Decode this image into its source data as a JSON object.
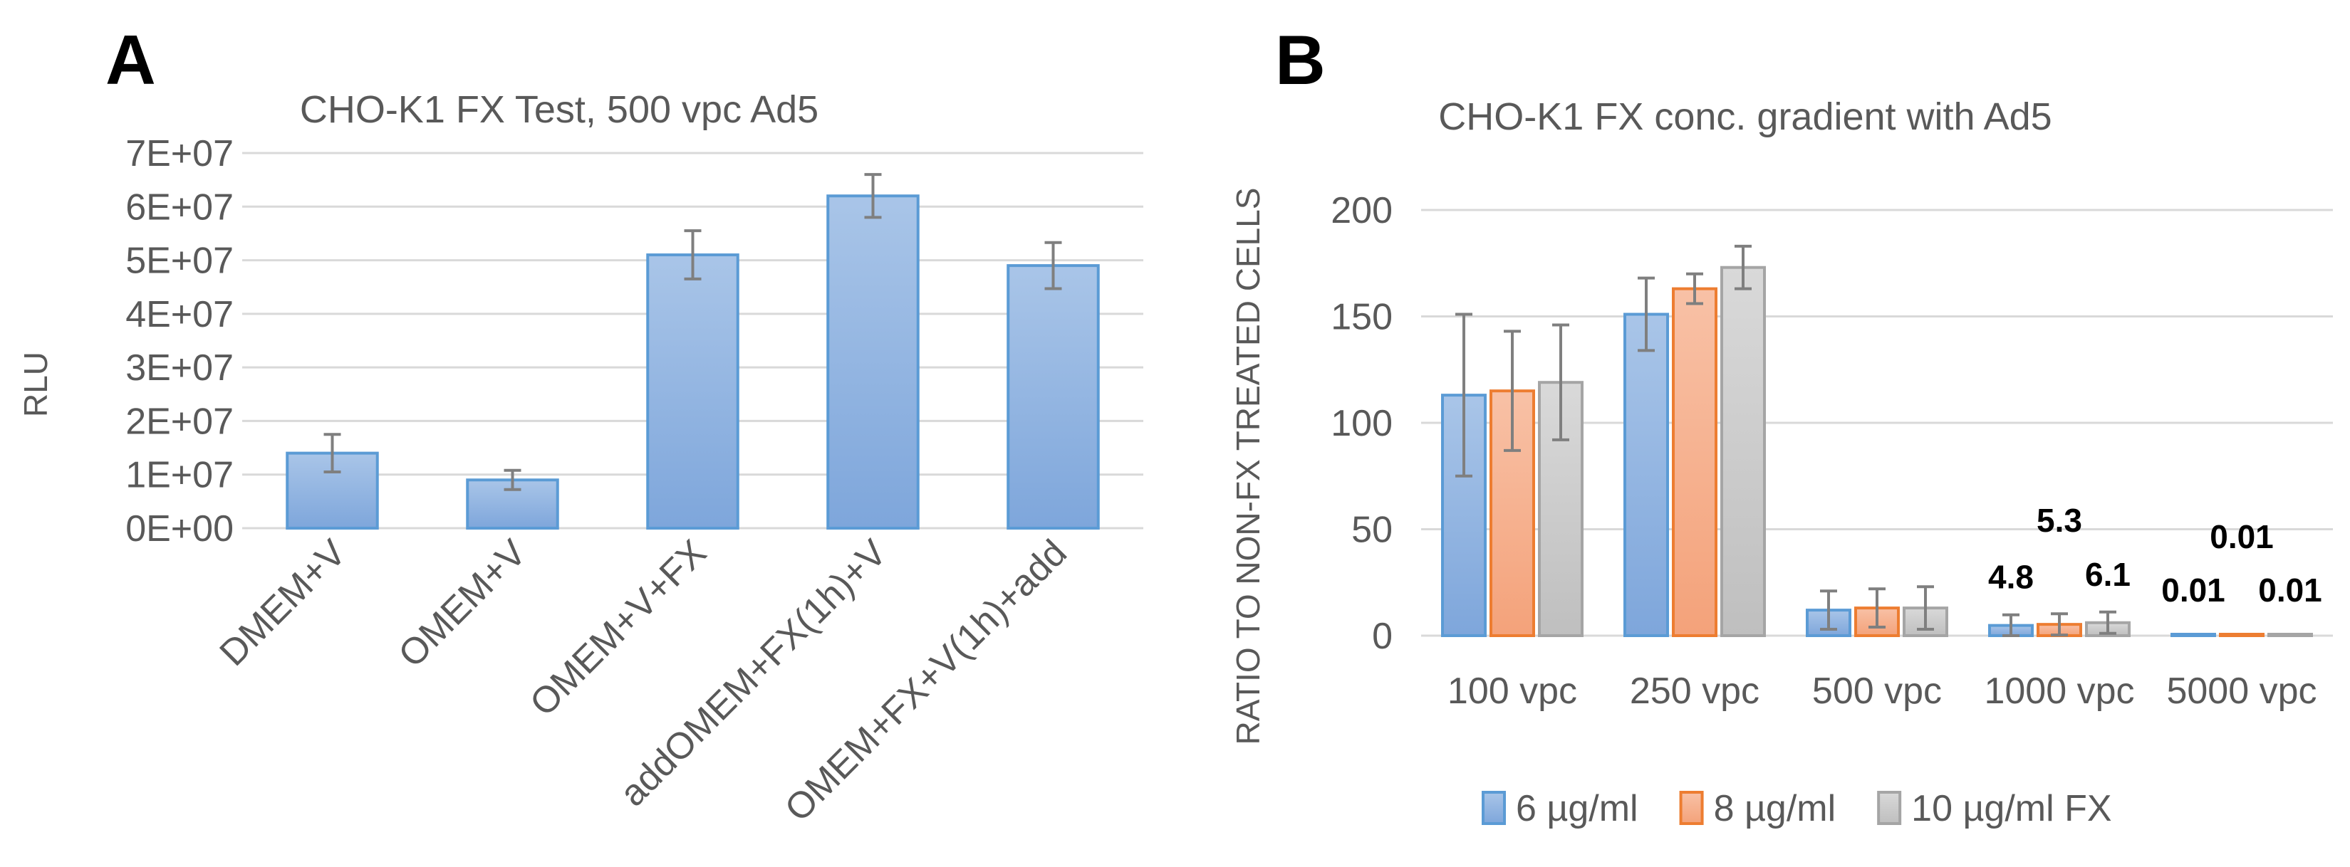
{
  "panels": {
    "a_letter": "A",
    "b_letter": "B"
  },
  "chart_data": [
    {
      "type": "bar",
      "title": "CHO-K1 FX Test, 500 vpc Ad5",
      "ylabel": "RLU",
      "xlabel": "",
      "ylim": [
        0,
        70000000
      ],
      "yticks": [
        0,
        10000000,
        20000000,
        30000000,
        40000000,
        50000000,
        60000000,
        70000000
      ],
      "ytick_labels": [
        "0E+00",
        "1E+07",
        "2E+07",
        "3E+07",
        "4E+07",
        "5E+07",
        "6E+07",
        "7E+07"
      ],
      "categories": [
        "DMEM+V",
        "OMEM+V",
        "OMEM+V+FX",
        "addOMEM+FX(1h)+V",
        "OMEM+FX+V(1h)+add"
      ],
      "values": [
        14000000,
        9000000,
        51000000,
        62000000,
        49000000
      ],
      "errors": [
        3500000,
        1800000,
        4500000,
        4000000,
        4300000
      ],
      "colors": {
        "fill_top": "#a9c5e8",
        "fill_bottom": "#7ea6db",
        "stroke": "#5b9bd5"
      },
      "grid": true
    },
    {
      "type": "bar",
      "title": "CHO-K1 FX conc. gradient with Ad5",
      "ylabel": "RATIO TO NON-FX TREATED CELLS",
      "xlabel": "",
      "ylim": [
        0,
        200
      ],
      "yticks": [
        0,
        50,
        100,
        150,
        200
      ],
      "categories": [
        "100 vpc",
        "250 vpc",
        "500 vpc",
        "1000 vpc",
        "5000 vpc"
      ],
      "series": [
        {
          "name": "6 µg/ml",
          "values": [
            113,
            151,
            12,
            4.8,
            0.01
          ],
          "errors": [
            38,
            17,
            9,
            5,
            0
          ],
          "colors": {
            "fill_top": "#a9c5e8",
            "fill_bottom": "#7ea6db",
            "stroke": "#5b9bd5"
          },
          "data_labels": [
            "",
            "",
            "",
            "4.8",
            "0.01"
          ]
        },
        {
          "name": "8 µg/ml",
          "values": [
            115,
            163,
            13,
            5.3,
            0.01
          ],
          "errors": [
            28,
            7,
            9,
            5,
            0
          ],
          "colors": {
            "fill_top": "#f8c1a6",
            "fill_bottom": "#f4a27a",
            "stroke": "#ed7d31"
          },
          "data_labels": [
            "",
            "",
            "",
            "5.3",
            "0.01"
          ]
        },
        {
          "name": "10 µg/ml FX",
          "values": [
            119,
            173,
            13,
            6.1,
            0.01
          ],
          "errors": [
            27,
            10,
            10,
            5,
            0
          ],
          "colors": {
            "fill_top": "#d9d9d9",
            "fill_bottom": "#bfbfbf",
            "stroke": "#a5a5a5"
          },
          "data_labels": [
            "",
            "",
            "",
            "6.1",
            "0.01"
          ]
        }
      ],
      "legend_position": "bottom",
      "grid": true
    }
  ]
}
